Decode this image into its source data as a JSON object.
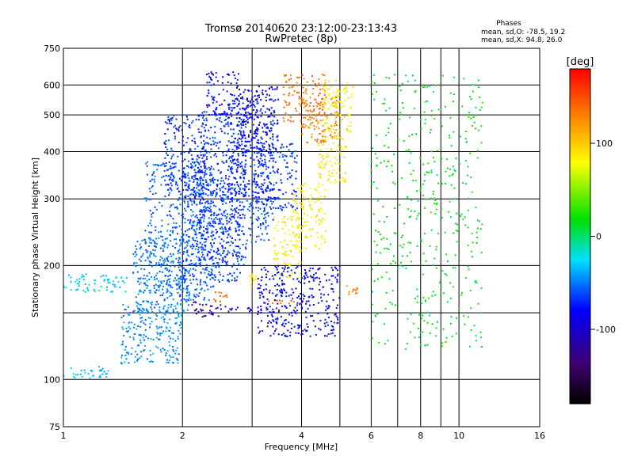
{
  "chart_data": {
    "type": "scatter",
    "title": "Tromsø 20140620 23:12:00-23:13:43",
    "subtitle": "RwPretec (8p)",
    "xlabel": "Frequency [MHz]",
    "ylabel": "Stationary phase Virtual Height [km]",
    "xscale": "log",
    "yscale": "log",
    "xlim": [
      1,
      16
    ],
    "ylim": [
      75,
      750
    ],
    "xticks": [
      1,
      2,
      4,
      6,
      8,
      10,
      16
    ],
    "x_minor_grid": [
      3,
      5,
      7,
      9
    ],
    "yticks": [
      75,
      100,
      200,
      300,
      400,
      500,
      600,
      750
    ],
    "y_minor_grid": [
      150
    ],
    "grid": true,
    "stats": {
      "title": "Phases",
      "line1": "mean, sd,O: -78.5, 19.2",
      "line2": "mean, sd,X:  94.8, 26.0"
    },
    "colorbar": {
      "label": "[deg]",
      "range": [
        -180,
        180
      ],
      "ticks": [
        100,
        0,
        -100
      ],
      "colormap": "rainbow (black-purple-blue-cyan-green-yellow-red)"
    },
    "series": [
      {
        "x": [
          1.0,
          1.3
        ],
        "y": [
          100,
          108
        ],
        "phase": -40
      },
      {
        "x": [
          1.0,
          1.45
        ],
        "y": [
          170,
          190
        ],
        "phase": -35
      },
      {
        "x": [
          1.4,
          2.0
        ],
        "y": [
          110,
          160
        ],
        "phase": -55
      },
      {
        "x": [
          1.5,
          2.1
        ],
        "y": [
          150,
          240
        ],
        "phase": -60
      },
      {
        "x": [
          1.6,
          2.4
        ],
        "y": [
          160,
          380
        ],
        "phase": -70
      },
      {
        "x": [
          1.8,
          2.3
        ],
        "y": [
          300,
          500
        ],
        "phase": -88
      },
      {
        "x": [
          2.0,
          2.8
        ],
        "y": [
          180,
          330
        ],
        "phase": -80
      },
      {
        "x": [
          2.2,
          2.9
        ],
        "y": [
          200,
          520
        ],
        "phase": -85
      },
      {
        "x": [
          2.3,
          2.8
        ],
        "y": [
          500,
          650
        ],
        "phase": -100
      },
      {
        "x": [
          2.6,
          3.4
        ],
        "y": [
          300,
          560
        ],
        "phase": -92
      },
      {
        "x": [
          2.8,
          3.5
        ],
        "y": [
          400,
          600
        ],
        "phase": -103
      },
      {
        "x": [
          2.9,
          3.4
        ],
        "y": [
          230,
          300
        ],
        "phase": -78
      },
      {
        "x": [
          3.0,
          3.9
        ],
        "y": [
          280,
          420
        ],
        "phase": -84
      },
      {
        "x": [
          3.6,
          4.6
        ],
        "y": [
          480,
          640
        ],
        "phase": 135
      },
      {
        "x": [
          3.4,
          4.0
        ],
        "y": [
          200,
          270
        ],
        "phase": 88
      },
      {
        "x": [
          3.8,
          4.6
        ],
        "y": [
          220,
          330
        ],
        "phase": 85
      },
      {
        "x": [
          4.4,
          5.2
        ],
        "y": [
          330,
          460
        ],
        "phase": 90
      },
      {
        "x": [
          4.0,
          5.0
        ],
        "y": [
          420,
          560
        ],
        "phase": 130
      },
      {
        "x": [
          4.5,
          5.4
        ],
        "y": [
          450,
          620
        ],
        "phase": 85
      },
      {
        "x": [
          3.3,
          4.0
        ],
        "y": [
          158,
          162
        ],
        "phase": 140
      },
      {
        "x": [
          2.4,
          3.0
        ],
        "y": [
          150,
          156
        ],
        "phase": -100
      },
      {
        "x": [
          2.1,
          2.5
        ],
        "y": [
          145,
          160
        ],
        "phase": -125
      },
      {
        "x": [
          3.4,
          4.2
        ],
        "y": [
          185,
          192
        ],
        "phase": 65
      },
      {
        "x": [
          5.2,
          5.6
        ],
        "y": [
          168,
          178
        ],
        "phase": 135
      },
      {
        "x": [
          3.1,
          5.0
        ],
        "y": [
          130,
          200
        ],
        "phase": -102
      },
      {
        "x": [
          6.0,
          11.5
        ],
        "y": [
          120,
          640
        ],
        "phase": 0
      },
      {
        "x": [
          2.4,
          2.6
        ],
        "y": [
          160,
          170
        ],
        "phase": 140
      },
      {
        "x": [
          2.95,
          3.1
        ],
        "y": [
          175,
          190
        ],
        "phase": 85
      }
    ]
  }
}
